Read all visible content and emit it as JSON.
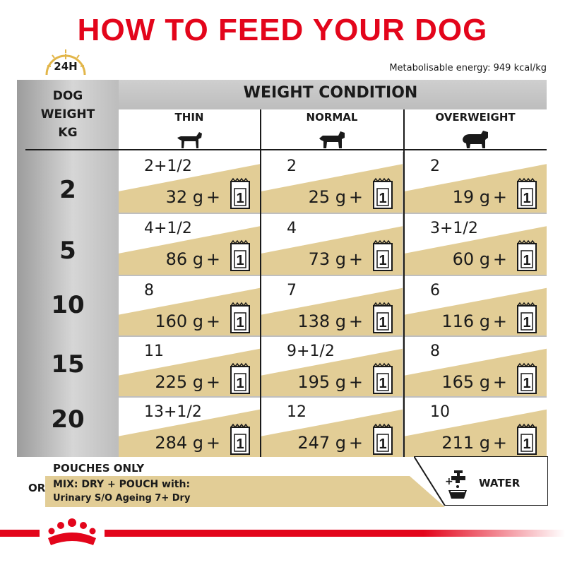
{
  "title": "HOW TO FEED YOUR DOG",
  "clock_label": "24H",
  "energy": "Metabolisable energy: 949 kcal/kg",
  "header": {
    "dog_weight_line1": "DOG",
    "dog_weight_line2": "WEIGHT",
    "dog_weight_line3": "KG",
    "weight_condition": "WEIGHT CONDITION",
    "columns": [
      "THIN",
      "NORMAL",
      "OVERWEIGHT"
    ]
  },
  "rows": [
    {
      "weight": "2",
      "cells": [
        {
          "pouches": "2+1/2",
          "grams": "32 g"
        },
        {
          "pouches": "2",
          "grams": "25 g"
        },
        {
          "pouches": "2",
          "grams": "19 g"
        }
      ]
    },
    {
      "weight": "5",
      "cells": [
        {
          "pouches": "4+1/2",
          "grams": "86 g"
        },
        {
          "pouches": "4",
          "grams": "73 g"
        },
        {
          "pouches": "3+1/2",
          "grams": "60 g"
        }
      ]
    },
    {
      "weight": "10",
      "cells": [
        {
          "pouches": "8",
          "grams": "160 g"
        },
        {
          "pouches": "7",
          "grams": "138 g"
        },
        {
          "pouches": "6",
          "grams": "116 g"
        }
      ]
    },
    {
      "weight": "15",
      "cells": [
        {
          "pouches": "11",
          "grams": "225 g"
        },
        {
          "pouches": "9+1/2",
          "grams": "195 g"
        },
        {
          "pouches": "8",
          "grams": "165 g"
        }
      ]
    },
    {
      "weight": "20",
      "cells": [
        {
          "pouches": "13+1/2",
          "grams": "284 g"
        },
        {
          "pouches": "12",
          "grams": "247 g"
        },
        {
          "pouches": "10",
          "grams": "211 g"
        }
      ]
    }
  ],
  "plus_sign": "+",
  "pouch_icon_number": "1",
  "footer": {
    "pouches_only": "POUCHES ONLY",
    "or": "OR",
    "mix_line1": "MIX: DRY + POUCH with:",
    "mix_line2": "Urinary S/O Ageing 7+ Dry",
    "water": "WATER",
    "water_plus": "+"
  },
  "colors": {
    "brand_red": "#e3051b",
    "gold": "#e2cd96",
    "gray": "#bfbfbf"
  },
  "icons": [
    "clock-icon",
    "dog-thin-icon",
    "dog-normal-icon",
    "dog-overweight-icon",
    "pouch-icon",
    "water-tap-icon",
    "royal-canin-crown-logo"
  ]
}
